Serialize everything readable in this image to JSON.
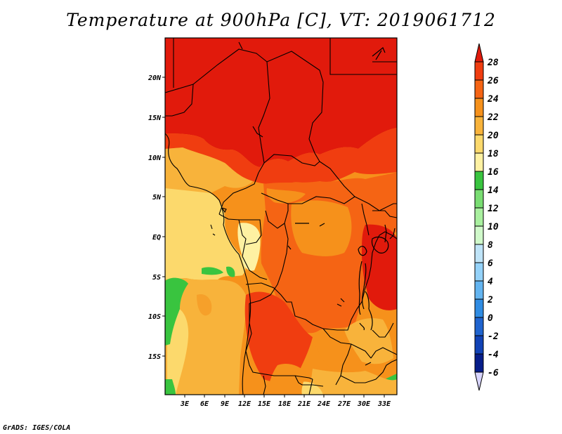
{
  "title": "Temperature at 900hPa [C], VT: 2019061712",
  "credit": "GrADS: IGES/COLA",
  "y_ticks": [
    "20N",
    "15N",
    "10N",
    "5N",
    "EQ",
    "5S",
    "10S",
    "15S"
  ],
  "x_ticks": [
    "3E",
    "6E",
    "9E",
    "12E",
    "15E",
    "18E",
    "21E",
    "24E",
    "27E",
    "30E",
    "33E"
  ],
  "colorbar": {
    "labels": [
      "28",
      "26",
      "24",
      "22",
      "20",
      "18",
      "16",
      "14",
      "12",
      "10",
      "8",
      "6",
      "4",
      "2",
      "0",
      "-2",
      "-4",
      "-6"
    ],
    "colors": [
      "#e11a0c",
      "#f03d10",
      "#f56414",
      "#f6911b",
      "#f8b33b",
      "#fcd96c",
      "#fef1a2",
      "#39c43f",
      "#79dd72",
      "#a9f09f",
      "#d0f9ca",
      "#bfe4f8",
      "#94d2f9",
      "#63b4f0",
      "#2f8ce3",
      "#1f64cf",
      "#1142b6",
      "#061d8a",
      "#d8d5ff"
    ]
  }
}
